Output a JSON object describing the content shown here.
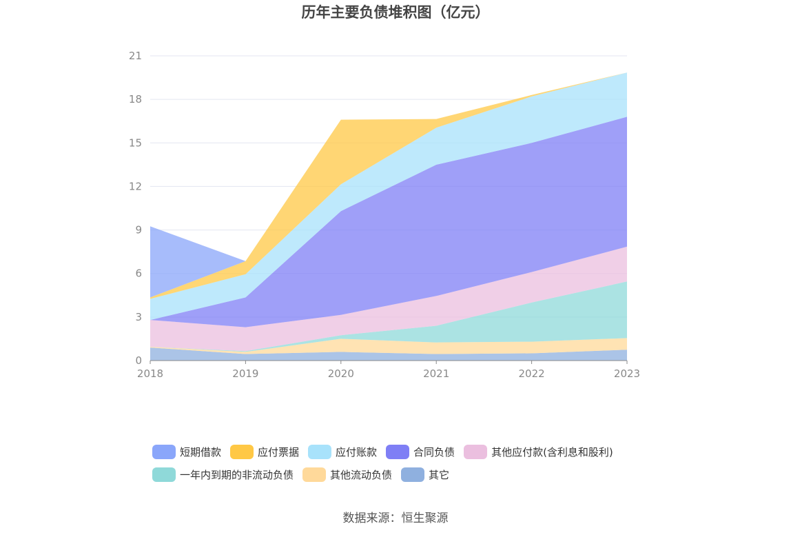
{
  "title": "历年主要负债堆积图（亿元）",
  "source": "数据来源：恒生聚源",
  "chart_data": {
    "type": "area",
    "stacked": true,
    "title": "历年主要负债堆积图（亿元）",
    "x": [
      "2018",
      "2019",
      "2020",
      "2021",
      "2022",
      "2023"
    ],
    "yticks": [
      "0",
      "3",
      "6",
      "9",
      "12",
      "15",
      "18",
      "21"
    ],
    "ylim": [
      0,
      21
    ],
    "grid": true,
    "legend_position": "bottom",
    "series": [
      {
        "name": "其它",
        "color": "#8fb0df",
        "values": [
          0.9,
          0.45,
          0.6,
          0.45,
          0.5,
          0.75
        ]
      },
      {
        "name": "其他流动负债",
        "color": "#ffd99a",
        "values": [
          0.05,
          0.15,
          0.9,
          0.8,
          0.8,
          0.8
        ]
      },
      {
        "name": "一年内到期的非流动负债",
        "color": "#8fd9d9",
        "values": [
          0,
          0.05,
          0.25,
          1.15,
          2.7,
          3.9
        ]
      },
      {
        "name": "其他应付款(含利息和股利)",
        "color": "#ebbfdf",
        "values": [
          1.85,
          1.65,
          1.4,
          2.05,
          2.1,
          2.4
        ]
      },
      {
        "name": "合同负债",
        "color": "#7f7ff5",
        "values": [
          0,
          2.05,
          7.15,
          9.05,
          8.9,
          8.95
        ]
      },
      {
        "name": "应付账款",
        "color": "#a8e2fb",
        "values": [
          1.45,
          1.6,
          1.85,
          2.55,
          3.2,
          3.05
        ]
      },
      {
        "name": "应付票据",
        "color": "#ffc845",
        "values": [
          0.1,
          0.9,
          4.45,
          0.6,
          0.1,
          0
        ]
      },
      {
        "name": "短期借款",
        "color": "#8aa6fa",
        "values": [
          4.9,
          0,
          0,
          0,
          0,
          0
        ]
      }
    ],
    "legend_order": [
      "短期借款",
      "应付票据",
      "应付账款",
      "合同负债",
      "其他应付款(含利息和股利)",
      "一年内到期的非流动负债",
      "其他流动负债",
      "其它"
    ]
  }
}
